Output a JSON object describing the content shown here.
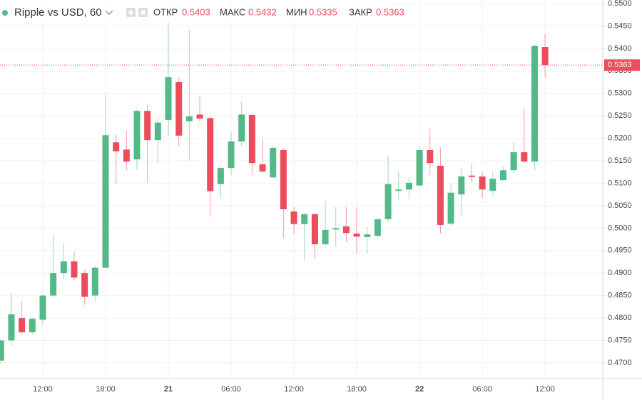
{
  "chart_data": {
    "type": "candlestick",
    "title": "Ripple vs USD, 60",
    "ohlc_labels": {
      "open": "ОТКР",
      "high": "МАКС",
      "low": "МИН",
      "close": "ЗАКР"
    },
    "categories": [
      null,
      null,
      null,
      null,
      "12:00",
      null,
      null,
      null,
      null,
      null,
      "18:00",
      null,
      null,
      null,
      null,
      null,
      "21",
      null,
      null,
      null,
      null,
      null,
      "06:00",
      null,
      null,
      null,
      null,
      null,
      "12:00",
      null,
      null,
      null,
      null,
      null,
      "18:00",
      null,
      null,
      null,
      null,
      null,
      "22",
      null,
      null,
      null,
      null,
      null,
      "06:00",
      null,
      null,
      null,
      null,
      null,
      "12:00"
    ],
    "open": [
      0.4705,
      0.475,
      0.48,
      0.4768,
      0.4796,
      0.485,
      0.49,
      0.4926,
      0.49,
      0.485,
      0.4912,
      0.5191,
      0.5175,
      0.5153,
      0.5261,
      0.5196,
      0.5241,
      0.5325,
      0.5238,
      0.5253,
      0.5245,
      0.5098,
      0.5134,
      0.5193,
      0.5252,
      0.5142,
      0.5113,
      0.5174,
      0.5037,
      0.5009,
      0.5031,
      0.4964,
      0.4997,
      0.5004,
      0.4988,
      0.498,
      0.4983,
      0.502,
      0.5083,
      0.5086,
      0.5095,
      0.5174,
      0.5139,
      0.501,
      0.5075,
      0.5117,
      0.5115,
      0.5083,
      0.5107,
      0.5129,
      0.5169,
      0.5148,
      0.5403
    ],
    "high": [
      0.4755,
      0.4856,
      0.4837,
      0.48,
      0.4852,
      0.4986,
      0.4967,
      0.4948,
      0.4907,
      0.4916,
      0.53,
      0.5209,
      0.5217,
      0.5265,
      0.5273,
      0.5245,
      0.5476,
      0.5336,
      0.5441,
      0.5293,
      0.525,
      0.5137,
      0.5214,
      0.5282,
      0.5254,
      0.5198,
      0.5182,
      0.5178,
      0.5047,
      0.5034,
      0.5034,
      0.5059,
      0.5047,
      0.5047,
      0.5044,
      0.5002,
      0.5021,
      0.5161,
      0.5126,
      0.5113,
      0.518,
      0.5222,
      0.518,
      0.5098,
      0.5134,
      0.5145,
      0.5126,
      0.5126,
      0.5137,
      0.5193,
      0.5266,
      0.5408,
      0.5432
    ],
    "low": [
      0.47,
      0.4737,
      0.4764,
      0.4764,
      0.4784,
      0.4846,
      0.4888,
      0.4884,
      0.4829,
      0.4837,
      0.491,
      0.5098,
      0.5129,
      0.5129,
      0.5101,
      0.5145,
      0.5206,
      0.5182,
      0.515,
      0.5238,
      0.5026,
      0.5066,
      0.5118,
      0.5182,
      0.5118,
      0.5123,
      0.511,
      0.4978,
      0.4986,
      0.4927,
      0.4931,
      0.4961,
      0.4959,
      0.497,
      0.4943,
      0.4943,
      0.4979,
      0.5015,
      0.5063,
      0.5066,
      0.5092,
      0.5118,
      0.4988,
      0.5005,
      0.5026,
      0.5102,
      0.5067,
      0.5072,
      0.5104,
      0.5123,
      0.5145,
      0.5129,
      0.5335
    ],
    "close": [
      0.475,
      0.4808,
      0.4768,
      0.4798,
      0.485,
      0.49,
      0.4926,
      0.489,
      0.4847,
      0.4912,
      0.5207,
      0.5171,
      0.5148,
      0.5261,
      0.5196,
      0.5235,
      0.5336,
      0.5206,
      0.5249,
      0.5244,
      0.5082,
      0.5134,
      0.5193,
      0.5253,
      0.5145,
      0.5126,
      0.5179,
      0.5042,
      0.5009,
      0.5031,
      0.4964,
      0.4996,
      0.5,
      0.4989,
      0.4981,
      0.4986,
      0.502,
      0.5098,
      0.5086,
      0.5101,
      0.5174,
      0.5145,
      0.5007,
      0.5079,
      0.5115,
      0.5114,
      0.5086,
      0.511,
      0.5129,
      0.5169,
      0.5148,
      0.5406,
      0.5363
    ],
    "up_color": "#53b987",
    "down_color": "#eb4d5c",
    "ylim": [
      0.4665,
      0.5508
    ],
    "yticks": [
      {
        "value": 0.47,
        "label": "0.4700"
      },
      {
        "value": 0.475,
        "label": "0.4750"
      },
      {
        "value": 0.48,
        "label": "0.4800"
      },
      {
        "value": 0.485,
        "label": "0.4850"
      },
      {
        "value": 0.49,
        "label": "0.4900"
      },
      {
        "value": 0.495,
        "label": "0.4950"
      },
      {
        "value": 0.5,
        "label": "0.5000"
      },
      {
        "value": 0.505,
        "label": "0.5050"
      },
      {
        "value": 0.51,
        "label": "0.5100"
      },
      {
        "value": 0.515,
        "label": "0.5150"
      },
      {
        "value": 0.52,
        "label": "0.5200"
      },
      {
        "value": 0.525,
        "label": "0.5250"
      },
      {
        "value": 0.53,
        "label": "0.5300"
      },
      {
        "value": 0.535,
        "label": "0.5350"
      },
      {
        "value": 0.54,
        "label": "0.5400"
      },
      {
        "value": 0.545,
        "label": "0.5450"
      },
      {
        "value": 0.55,
        "label": "0.5500"
      }
    ],
    "grid": true
  }
}
